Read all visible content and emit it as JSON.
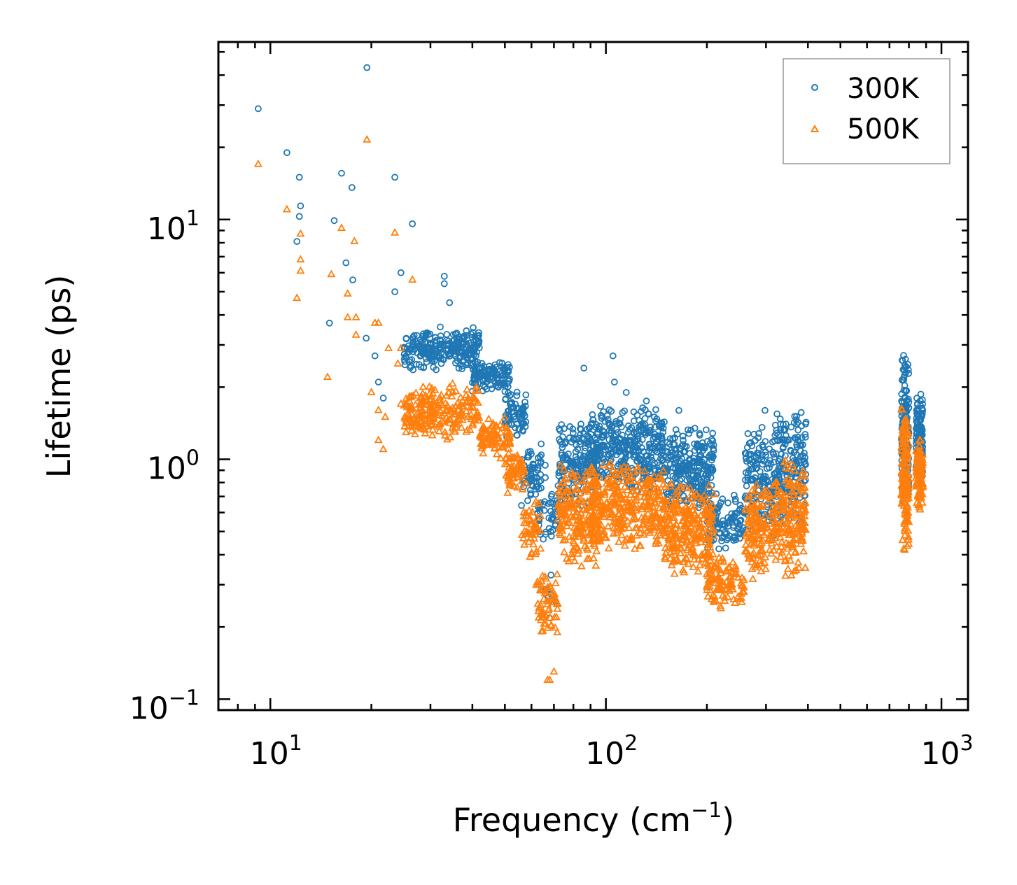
{
  "chart_data": {
    "type": "scatter",
    "xscale": "log",
    "yscale": "log",
    "xlabel": "Frequency (cm",
    "xlabel_sup": "−1",
    "xlabel_end": ")",
    "ylabel": "Lifetime (ps)",
    "xlim": [
      7,
      1200
    ],
    "ylim": [
      0.09,
      55
    ],
    "x_ticks": [
      {
        "value": 10,
        "base": "10",
        "exp": "1"
      },
      {
        "value": 100,
        "base": "10",
        "exp": "2"
      },
      {
        "value": 1000,
        "base": "10",
        "exp": "3"
      }
    ],
    "y_ticks": [
      {
        "value": 0.1,
        "base": "10",
        "exp": "−1"
      },
      {
        "value": 1,
        "base": "10",
        "exp": "0"
      },
      {
        "value": 10,
        "base": "10",
        "exp": "1"
      }
    ],
    "legend": {
      "position": "top-right"
    },
    "series": [
      {
        "name": "300K",
        "color": "#1f77b4",
        "marker": "circle",
        "explicit_points": [
          [
            9.2,
            29
          ],
          [
            11.2,
            19
          ],
          [
            12.2,
            15
          ],
          [
            12.3,
            11.4
          ],
          [
            12.2,
            10.3
          ],
          [
            12.0,
            8.1
          ],
          [
            15.5,
            9.9
          ],
          [
            16.3,
            15.6
          ],
          [
            17.5,
            13.6
          ],
          [
            16.8,
            6.6
          ],
          [
            17.6,
            5.6
          ],
          [
            19.4,
            43
          ],
          [
            23.5,
            15
          ],
          [
            26.5,
            9.6
          ],
          [
            15.0,
            3.7
          ],
          [
            19.3,
            3.2
          ],
          [
            24.5,
            6.0
          ],
          [
            23.5,
            5.0
          ],
          [
            33.0,
            5.4
          ],
          [
            33.0,
            5.8
          ],
          [
            34.2,
            4.5
          ],
          [
            20.5,
            2.7
          ],
          [
            21.0,
            2.1
          ],
          [
            21.7,
            1.8
          ],
          [
            86.0,
            2.4
          ],
          [
            105,
            2.7
          ],
          [
            106,
            2.1
          ],
          [
            115,
            1.9
          ],
          [
            132,
            1.75
          ],
          [
            165,
            1.6
          ],
          [
            298,
            1.6
          ],
          [
            325,
            1.2
          ]
        ],
        "clusters": [
          {
            "x_range": [
              25,
              42
            ],
            "y_range": [
              2.3,
              3.6
            ],
            "n": 260
          },
          {
            "x_range": [
              40,
              52
            ],
            "y_range": [
              1.9,
              2.6
            ],
            "n": 110
          },
          {
            "x_range": [
              50,
              58
            ],
            "y_range": [
              1.2,
              2.0
            ],
            "n": 70
          },
          {
            "x_range": [
              56,
              66
            ],
            "y_range": [
              0.6,
              1.2
            ],
            "n": 60
          },
          {
            "x_range": [
              62,
              72
            ],
            "y_range": [
              0.45,
              0.8
            ],
            "n": 45
          },
          {
            "x_range": [
              66,
              72
            ],
            "y_range": [
              0.21,
              0.35
            ],
            "n": 8
          },
          {
            "x_range": [
              72,
              95
            ],
            "y_range": [
              0.6,
              1.5
            ],
            "n": 200
          },
          {
            "x_range": [
              90,
              150
            ],
            "y_range": [
              0.7,
              1.7
            ],
            "n": 360
          },
          {
            "x_range": [
              150,
              210
            ],
            "y_range": [
              0.6,
              1.4
            ],
            "n": 260
          },
          {
            "x_range": [
              200,
              260
            ],
            "y_range": [
              0.4,
              0.75
            ],
            "n": 110
          },
          {
            "x_range": [
              260,
              320
            ],
            "y_range": [
              0.45,
              1.45
            ],
            "n": 150
          },
          {
            "x_range": [
              320,
              395
            ],
            "y_range": [
              0.45,
              1.85
            ],
            "n": 180
          },
          {
            "x_range": [
              760,
              800
            ],
            "y_range": [
              0.6,
              2.8
            ],
            "n": 150
          },
          {
            "x_range": [
              840,
              880
            ],
            "y_range": [
              0.8,
              2.0
            ],
            "n": 110
          }
        ]
      },
      {
        "name": "500K",
        "color": "#ff7f0e",
        "marker": "triangle",
        "explicit_points": [
          [
            9.2,
            17
          ],
          [
            11.2,
            11
          ],
          [
            12.3,
            8.7
          ],
          [
            12.3,
            6.8
          ],
          [
            12.3,
            6.1
          ],
          [
            12.0,
            4.7
          ],
          [
            15.2,
            5.9
          ],
          [
            16.3,
            9.2
          ],
          [
            17.8,
            8.1
          ],
          [
            17.0,
            4.9
          ],
          [
            17.0,
            3.9
          ],
          [
            18.0,
            3.9
          ],
          [
            19.4,
            21.5
          ],
          [
            23.5,
            8.8
          ],
          [
            26.5,
            5.6
          ],
          [
            14.8,
            2.2
          ],
          [
            18.0,
            3.3
          ],
          [
            20.5,
            3.7
          ],
          [
            21.0,
            3.7
          ],
          [
            20.0,
            1.9
          ],
          [
            21.0,
            1.6
          ],
          [
            21.7,
            1.1
          ],
          [
            21.0,
            1.2
          ],
          [
            22.5,
            2.9
          ],
          [
            22.0,
            1.5
          ],
          [
            24.5,
            2.9
          ],
          [
            24.0,
            2.5
          ],
          [
            24.5,
            1.7
          ],
          [
            68,
            0.12
          ],
          [
            70,
            0.13
          ],
          [
            67,
            0.12
          ]
        ],
        "clusters": [
          {
            "x_range": [
              25,
              42
            ],
            "y_range": [
              1.2,
              2.1
            ],
            "n": 230
          },
          {
            "x_range": [
              42,
              52
            ],
            "y_range": [
              1.0,
              1.5
            ],
            "n": 90
          },
          {
            "x_range": [
              50,
              58
            ],
            "y_range": [
              0.7,
              1.1
            ],
            "n": 60
          },
          {
            "x_range": [
              56,
              64
            ],
            "y_range": [
              0.35,
              0.7
            ],
            "n": 50
          },
          {
            "x_range": [
              62,
              72
            ],
            "y_range": [
              0.17,
              0.35
            ],
            "n": 60
          },
          {
            "x_range": [
              72,
              95
            ],
            "y_range": [
              0.35,
              0.95
            ],
            "n": 200
          },
          {
            "x_range": [
              90,
              150
            ],
            "y_range": [
              0.4,
              1.0
            ],
            "n": 340
          },
          {
            "x_range": [
              150,
              210
            ],
            "y_range": [
              0.3,
              0.85
            ],
            "n": 250
          },
          {
            "x_range": [
              200,
              260
            ],
            "y_range": [
              0.23,
              0.4
            ],
            "n": 100
          },
          {
            "x_range": [
              260,
              320
            ],
            "y_range": [
              0.3,
              0.85
            ],
            "n": 150
          },
          {
            "x_range": [
              320,
              395
            ],
            "y_range": [
              0.3,
              1.1
            ],
            "n": 170
          },
          {
            "x_range": [
              760,
              800
            ],
            "y_range": [
              0.4,
              1.8
            ],
            "n": 150
          },
          {
            "x_range": [
              840,
              880
            ],
            "y_range": [
              0.6,
              1.3
            ],
            "n": 110
          }
        ]
      }
    ]
  }
}
